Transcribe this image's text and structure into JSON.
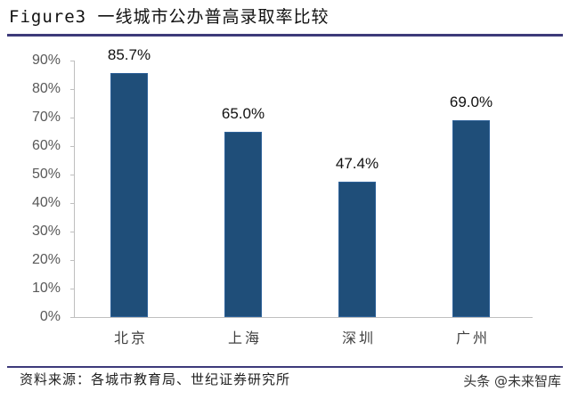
{
  "title": "Figure3 一线城市公办普高录取率比较",
  "source_note": "资料来源：各城市教育局、世纪证券研究所",
  "watermark": "头条 @未来智库",
  "colors": {
    "bar": "#1f4e79",
    "rule": "#3d3a7a",
    "axis": "#bfbfbf",
    "tick_label": "#595959"
  },
  "y_ticks": [
    "0%",
    "10%",
    "20%",
    "30%",
    "40%",
    "50%",
    "60%",
    "70%",
    "80%",
    "90%"
  ],
  "bars": [
    {
      "category": "北京",
      "value": 85.7,
      "label": "85.7%"
    },
    {
      "category": "上海",
      "value": 65.0,
      "label": "65.0%"
    },
    {
      "category": "深圳",
      "value": 47.4,
      "label": "47.4%"
    },
    {
      "category": "广州",
      "value": 69.0,
      "label": "69.0%"
    }
  ],
  "chart_data": {
    "type": "bar",
    "title": "Figure3 一线城市公办普高录取率比较",
    "categories": [
      "北京",
      "上海",
      "深圳",
      "广州"
    ],
    "values": [
      85.7,
      65.0,
      47.4,
      69.0
    ],
    "data_labels": [
      "85.7%",
      "65.0%",
      "47.4%",
      "69.0%"
    ],
    "xlabel": "",
    "ylabel": "",
    "ylim": [
      0,
      90
    ],
    "y_tick_step": 10,
    "y_tick_format": "percent",
    "grid": false,
    "legend": null,
    "source": "资料来源：各城市教育局、世纪证券研究所"
  }
}
